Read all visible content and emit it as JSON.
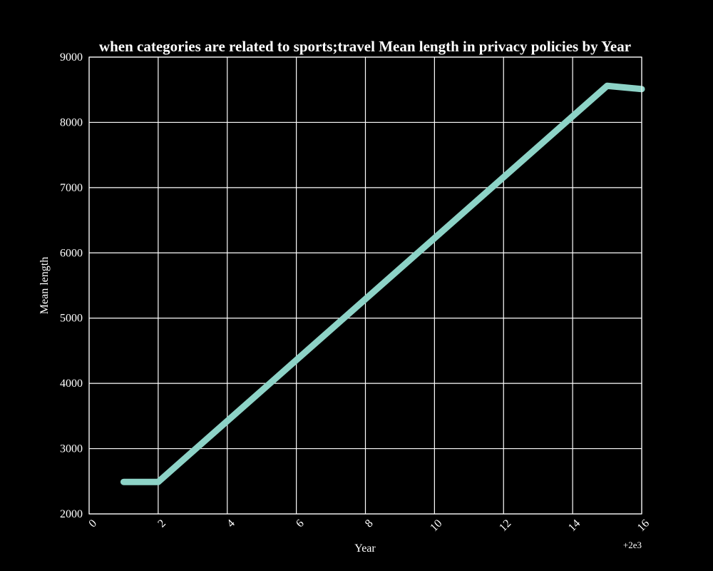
{
  "chart_data": {
    "type": "line",
    "title": "when categories are related to sports;travel Mean length in privacy policies by Year",
    "xlabel": "Year",
    "ylabel": "Mean length",
    "x_offset_label": "+2e3",
    "xlim": [
      0,
      16
    ],
    "ylim": [
      2000,
      9000
    ],
    "x_ticks": [
      "0",
      "2",
      "4",
      "6",
      "8",
      "10",
      "12",
      "14",
      "16"
    ],
    "y_ticks": [
      "2000",
      "3000",
      "4000",
      "5000",
      "6000",
      "7000",
      "8000",
      "9000"
    ],
    "grid": true,
    "series": [
      {
        "x": [
          1,
          2,
          15,
          16
        ],
        "values": [
          2490,
          2490,
          8560,
          8510
        ],
        "color": "#8dd3c7"
      }
    ]
  }
}
